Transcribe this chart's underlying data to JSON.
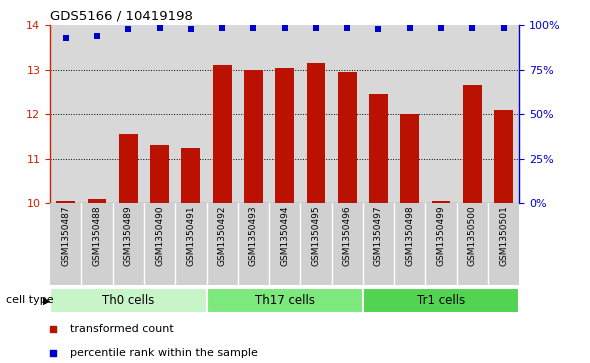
{
  "title": "GDS5166 / 10419198",
  "samples": [
    "GSM1350487",
    "GSM1350488",
    "GSM1350489",
    "GSM1350490",
    "GSM1350491",
    "GSM1350492",
    "GSM1350493",
    "GSM1350494",
    "GSM1350495",
    "GSM1350496",
    "GSM1350497",
    "GSM1350498",
    "GSM1350499",
    "GSM1350500",
    "GSM1350501"
  ],
  "bar_values": [
    10.05,
    10.1,
    11.55,
    11.3,
    11.25,
    13.1,
    13.0,
    13.05,
    13.15,
    12.95,
    12.45,
    12.0,
    10.05,
    12.65,
    12.1
  ],
  "dot_values": [
    13.72,
    13.76,
    13.93,
    13.95,
    13.93,
    13.95,
    13.95,
    13.95,
    13.95,
    13.95,
    13.93,
    13.95,
    13.95,
    13.95,
    13.95
  ],
  "cell_groups": [
    {
      "label": "Th0 cells",
      "start": 0,
      "end": 5,
      "color": "#c8f5c8"
    },
    {
      "label": "Th17 cells",
      "start": 5,
      "end": 10,
      "color": "#7de87d"
    },
    {
      "label": "Tr1 cells",
      "start": 10,
      "end": 15,
      "color": "#52d452"
    }
  ],
  "bar_color": "#bb1100",
  "dot_color": "#0000cc",
  "ylim_left": [
    10,
    14
  ],
  "ylim_right": [
    0,
    100
  ],
  "yticks_left": [
    10,
    11,
    12,
    13,
    14
  ],
  "yticks_right": [
    0,
    25,
    50,
    75,
    100
  ],
  "ytick_labels_right": [
    "0%",
    "25%",
    "50%",
    "75%",
    "100%"
  ],
  "ylabel_left_color": "#cc2200",
  "ylabel_right_color": "#0000cc",
  "grid_ticks": [
    11,
    12,
    13
  ],
  "bar_bottom": 10,
  "legend_items": [
    {
      "label": "transformed count",
      "color": "#bb1100",
      "marker": "s"
    },
    {
      "label": "percentile rank within the sample",
      "color": "#0000cc",
      "marker": "s"
    }
  ],
  "cell_type_label": "cell type",
  "background_color": "#ffffff",
  "plot_bg_color": "#d8d8d8",
  "label_bg_color": "#d0d0d0"
}
